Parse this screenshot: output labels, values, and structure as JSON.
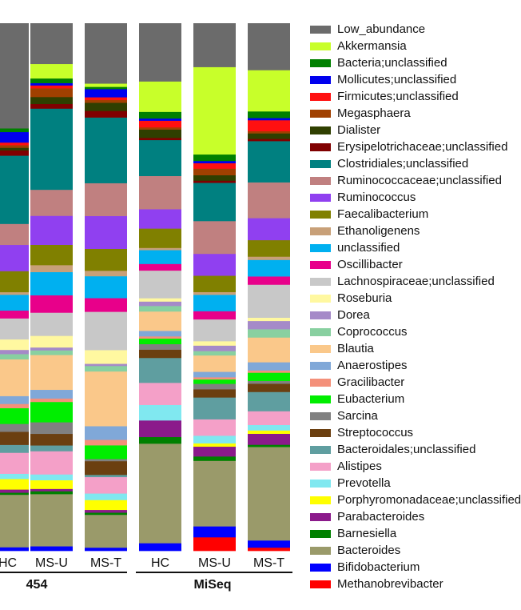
{
  "chart_data": {
    "type": "bar",
    "stacked": true,
    "normalized": true,
    "categories": [
      "HC",
      "MS-U",
      "MS-T",
      "HC",
      "MS-U",
      "MS-T"
    ],
    "platform_groups": [
      {
        "label": "454",
        "columns": [
          0,
          1,
          2
        ]
      },
      {
        "label": "MiSeq",
        "columns": [
          3,
          4,
          5
        ]
      }
    ],
    "stack_order_bottom_to_top": [
      "Methanobrevibacter",
      "Bifidobacterium",
      "Bacteroides",
      "Barnesiella",
      "Parabacteroides",
      "Porphyromonadaceae;unclassified",
      "Prevotella",
      "Alistipes",
      "Bacteroidales;unclassified",
      "Streptococcus",
      "Sarcina",
      "Eubacterium",
      "Gracilibacter",
      "Anaerostipes",
      "Blautia",
      "Coprococcus",
      "Dorea",
      "Roseburia",
      "Lachnospiraceae;unclassified",
      "Oscillibacter",
      "unclassified",
      "Ethanoligenens",
      "Faecalibacterium",
      "Ruminococcus",
      "Ruminococcaceae;unclassified",
      "Clostridiales;unclassified",
      "Erysipelotrichaceae;unclassified",
      "Dialister",
      "Megasphaera",
      "Firmicutes;unclassified",
      "Mollicutes;unclassified",
      "Bacteria;unclassified",
      "Akkermansia",
      "Low_abundance"
    ],
    "series": [
      {
        "name": "Methanobrevibacter",
        "color": "#ff0000",
        "values": [
          0.0,
          0.0,
          0.0,
          0.0,
          0.025,
          0.006
        ]
      },
      {
        "name": "Bifidobacterium",
        "color": "#0000ff",
        "values": [
          0.007,
          0.008,
          0.006,
          0.014,
          0.02,
          0.013
        ]
      },
      {
        "name": "Bacteroides",
        "color": "#9a9a6a",
        "values": [
          0.1,
          0.09,
          0.06,
          0.18,
          0.12,
          0.17
        ]
      },
      {
        "name": "Barnesiella",
        "color": "#008000",
        "values": [
          0.004,
          0.005,
          0.004,
          0.012,
          0.008,
          0.004
        ]
      },
      {
        "name": "Parabacteroides",
        "color": "#8b1a8b",
        "values": [
          0.006,
          0.004,
          0.005,
          0.03,
          0.018,
          0.02
        ]
      },
      {
        "name": "Porphyromonadaceae;unclassified",
        "color": "#ffff00",
        "values": [
          0.02,
          0.015,
          0.018,
          0.0,
          0.006,
          0.006
        ]
      },
      {
        "name": "Prevotella",
        "color": "#80e8f0",
        "values": [
          0.01,
          0.01,
          0.012,
          0.028,
          0.014,
          0.01
        ]
      },
      {
        "name": "Alistipes",
        "color": "#f4a0c8",
        "values": [
          0.04,
          0.04,
          0.03,
          0.04,
          0.03,
          0.025
        ]
      },
      {
        "name": "Bacteroidales;unclassified",
        "color": "#5f9ea0",
        "values": [
          0.015,
          0.01,
          0.004,
          0.045,
          0.04,
          0.035
        ]
      },
      {
        "name": "Streptococcus",
        "color": "#6b3f10",
        "values": [
          0.025,
          0.02,
          0.025,
          0.015,
          0.015,
          0.015
        ]
      },
      {
        "name": "Sarcina",
        "color": "#808080",
        "values": [
          0.015,
          0.02,
          0.004,
          0.01,
          0.01,
          0.005
        ]
      },
      {
        "name": "Eubacterium",
        "color": "#00ee00",
        "values": [
          0.03,
          0.035,
          0.025,
          0.01,
          0.008,
          0.015
        ]
      },
      {
        "name": "Gracilibacter",
        "color": "#f4907a",
        "values": [
          0.008,
          0.006,
          0.01,
          0.004,
          0.004,
          0.004
        ]
      },
      {
        "name": "Anaerostipes",
        "color": "#80a8d8",
        "values": [
          0.015,
          0.015,
          0.025,
          0.01,
          0.01,
          0.015
        ]
      },
      {
        "name": "Blautia",
        "color": "#fac88a",
        "values": [
          0.07,
          0.06,
          0.1,
          0.035,
          0.03,
          0.045
        ]
      },
      {
        "name": "Coprococcus",
        "color": "#88d0a0",
        "values": [
          0.01,
          0.008,
          0.01,
          0.01,
          0.008,
          0.015
        ]
      },
      {
        "name": "Dorea",
        "color": "#a58ac8",
        "values": [
          0.008,
          0.005,
          0.004,
          0.008,
          0.01,
          0.015
        ]
      },
      {
        "name": "Roseburia",
        "color": "#fff8a0",
        "values": [
          0.02,
          0.02,
          0.025,
          0.006,
          0.008,
          0.006
        ]
      },
      {
        "name": "Lachnospiraceae;unclassified",
        "color": "#c8c8c8",
        "values": [
          0.04,
          0.04,
          0.07,
          0.05,
          0.04,
          0.06
        ]
      },
      {
        "name": "Oscillibacter",
        "color": "#e8008a",
        "values": [
          0.015,
          0.03,
          0.025,
          0.012,
          0.015,
          0.015
        ]
      },
      {
        "name": "unclassified",
        "color": "#00b0f0",
        "values": [
          0.03,
          0.04,
          0.04,
          0.025,
          0.03,
          0.03
        ]
      },
      {
        "name": "Ethanoligenens",
        "color": "#c8a078",
        "values": [
          0.005,
          0.012,
          0.01,
          0.004,
          0.005,
          0.006
        ]
      },
      {
        "name": "Faecalibacterium",
        "color": "#808000",
        "values": [
          0.04,
          0.035,
          0.04,
          0.035,
          0.03,
          0.03
        ]
      },
      {
        "name": "Ruminococcus",
        "color": "#9040f0",
        "values": [
          0.05,
          0.05,
          0.06,
          0.035,
          0.04,
          0.04
        ]
      },
      {
        "name": "Ruminococcaceae;unclassified",
        "color": "#c08080",
        "values": [
          0.04,
          0.045,
          0.06,
          0.06,
          0.06,
          0.065
        ]
      },
      {
        "name": "Clostridiales;unclassified",
        "color": "#008080",
        "values": [
          0.13,
          0.14,
          0.12,
          0.065,
          0.07,
          0.075
        ]
      },
      {
        "name": "Erysipelotrichaceae;unclassified",
        "color": "#800000",
        "values": [
          0.01,
          0.008,
          0.012,
          0.004,
          0.004,
          0.004
        ]
      },
      {
        "name": "Dialister",
        "color": "#2f3f00",
        "values": [
          0.005,
          0.012,
          0.015,
          0.015,
          0.01,
          0.01
        ]
      },
      {
        "name": "Megasphaera",
        "color": "#a04000",
        "values": [
          0.005,
          0.015,
          0.005,
          0.004,
          0.012,
          0.004
        ]
      },
      {
        "name": "Firmicutes;unclassified",
        "color": "#ff1010",
        "values": [
          0.005,
          0.005,
          0.005,
          0.012,
          0.01,
          0.02
        ]
      },
      {
        "name": "Mollicutes;unclassified",
        "color": "#0000ee",
        "values": [
          0.02,
          0.004,
          0.015,
          0.004,
          0.004,
          0.004
        ]
      },
      {
        "name": "Bacteria;unclassified",
        "color": "#008000",
        "values": [
          0.007,
          0.008,
          0.004,
          0.012,
          0.012,
          0.012
        ]
      },
      {
        "name": "Akkermansia",
        "color": "#c8ff2a",
        "values": [
          0.0,
          0.025,
          0.006,
          0.055,
          0.16,
          0.075
        ]
      },
      {
        "name": "Low_abundance",
        "color": "#6b6b6b",
        "values": [
          0.2,
          0.07,
          0.11,
          0.105,
          0.08,
          0.085
        ]
      }
    ]
  }
}
